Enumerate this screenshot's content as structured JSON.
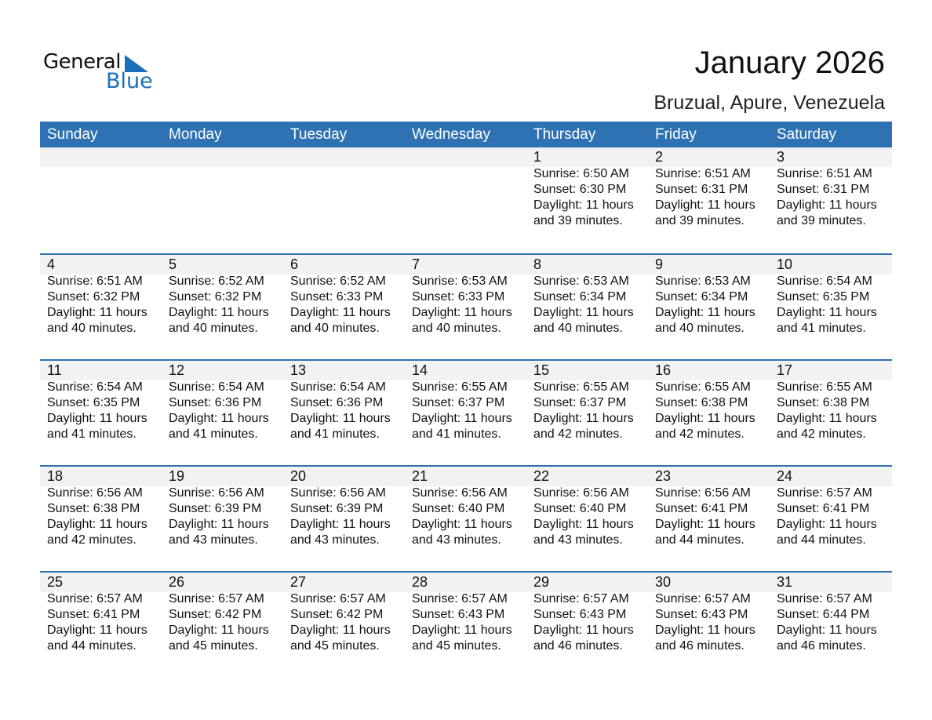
{
  "logo": {
    "text_general": "General",
    "text_blue": "Blue"
  },
  "title": "January 2026",
  "subtitle": "Bruzual, Apure, Venezuela",
  "colors": {
    "header_bg": "#2e72b4",
    "band_bg": "#f2f2f2",
    "brand": "#1a70b8"
  },
  "weekdays": [
    "Sunday",
    "Monday",
    "Tuesday",
    "Wednesday",
    "Thursday",
    "Friday",
    "Saturday"
  ],
  "weeks": [
    [
      null,
      null,
      null,
      null,
      {
        "date": "1",
        "sunrise": "Sunrise: 6:50 AM",
        "sunset": "Sunset: 6:30 PM",
        "daylight": "Daylight: 11 hours",
        "minutes": "and 39 minutes."
      },
      {
        "date": "2",
        "sunrise": "Sunrise: 6:51 AM",
        "sunset": "Sunset: 6:31 PM",
        "daylight": "Daylight: 11 hours",
        "minutes": "and 39 minutes."
      },
      {
        "date": "3",
        "sunrise": "Sunrise: 6:51 AM",
        "sunset": "Sunset: 6:31 PM",
        "daylight": "Daylight: 11 hours",
        "minutes": "and 39 minutes."
      }
    ],
    [
      {
        "date": "4",
        "sunrise": "Sunrise: 6:51 AM",
        "sunset": "Sunset: 6:32 PM",
        "daylight": "Daylight: 11 hours",
        "minutes": "and 40 minutes."
      },
      {
        "date": "5",
        "sunrise": "Sunrise: 6:52 AM",
        "sunset": "Sunset: 6:32 PM",
        "daylight": "Daylight: 11 hours",
        "minutes": "and 40 minutes."
      },
      {
        "date": "6",
        "sunrise": "Sunrise: 6:52 AM",
        "sunset": "Sunset: 6:33 PM",
        "daylight": "Daylight: 11 hours",
        "minutes": "and 40 minutes."
      },
      {
        "date": "7",
        "sunrise": "Sunrise: 6:53 AM",
        "sunset": "Sunset: 6:33 PM",
        "daylight": "Daylight: 11 hours",
        "minutes": "and 40 minutes."
      },
      {
        "date": "8",
        "sunrise": "Sunrise: 6:53 AM",
        "sunset": "Sunset: 6:34 PM",
        "daylight": "Daylight: 11 hours",
        "minutes": "and 40 minutes."
      },
      {
        "date": "9",
        "sunrise": "Sunrise: 6:53 AM",
        "sunset": "Sunset: 6:34 PM",
        "daylight": "Daylight: 11 hours",
        "minutes": "and 40 minutes."
      },
      {
        "date": "10",
        "sunrise": "Sunrise: 6:54 AM",
        "sunset": "Sunset: 6:35 PM",
        "daylight": "Daylight: 11 hours",
        "minutes": "and 41 minutes."
      }
    ],
    [
      {
        "date": "11",
        "sunrise": "Sunrise: 6:54 AM",
        "sunset": "Sunset: 6:35 PM",
        "daylight": "Daylight: 11 hours",
        "minutes": "and 41 minutes."
      },
      {
        "date": "12",
        "sunrise": "Sunrise: 6:54 AM",
        "sunset": "Sunset: 6:36 PM",
        "daylight": "Daylight: 11 hours",
        "minutes": "and 41 minutes."
      },
      {
        "date": "13",
        "sunrise": "Sunrise: 6:54 AM",
        "sunset": "Sunset: 6:36 PM",
        "daylight": "Daylight: 11 hours",
        "minutes": "and 41 minutes."
      },
      {
        "date": "14",
        "sunrise": "Sunrise: 6:55 AM",
        "sunset": "Sunset: 6:37 PM",
        "daylight": "Daylight: 11 hours",
        "minutes": "and 41 minutes."
      },
      {
        "date": "15",
        "sunrise": "Sunrise: 6:55 AM",
        "sunset": "Sunset: 6:37 PM",
        "daylight": "Daylight: 11 hours",
        "minutes": "and 42 minutes."
      },
      {
        "date": "16",
        "sunrise": "Sunrise: 6:55 AM",
        "sunset": "Sunset: 6:38 PM",
        "daylight": "Daylight: 11 hours",
        "minutes": "and 42 minutes."
      },
      {
        "date": "17",
        "sunrise": "Sunrise: 6:55 AM",
        "sunset": "Sunset: 6:38 PM",
        "daylight": "Daylight: 11 hours",
        "minutes": "and 42 minutes."
      }
    ],
    [
      {
        "date": "18",
        "sunrise": "Sunrise: 6:56 AM",
        "sunset": "Sunset: 6:38 PM",
        "daylight": "Daylight: 11 hours",
        "minutes": "and 42 minutes."
      },
      {
        "date": "19",
        "sunrise": "Sunrise: 6:56 AM",
        "sunset": "Sunset: 6:39 PM",
        "daylight": "Daylight: 11 hours",
        "minutes": "and 43 minutes."
      },
      {
        "date": "20",
        "sunrise": "Sunrise: 6:56 AM",
        "sunset": "Sunset: 6:39 PM",
        "daylight": "Daylight: 11 hours",
        "minutes": "and 43 minutes."
      },
      {
        "date": "21",
        "sunrise": "Sunrise: 6:56 AM",
        "sunset": "Sunset: 6:40 PM",
        "daylight": "Daylight: 11 hours",
        "minutes": "and 43 minutes."
      },
      {
        "date": "22",
        "sunrise": "Sunrise: 6:56 AM",
        "sunset": "Sunset: 6:40 PM",
        "daylight": "Daylight: 11 hours",
        "minutes": "and 43 minutes."
      },
      {
        "date": "23",
        "sunrise": "Sunrise: 6:56 AM",
        "sunset": "Sunset: 6:41 PM",
        "daylight": "Daylight: 11 hours",
        "minutes": "and 44 minutes."
      },
      {
        "date": "24",
        "sunrise": "Sunrise: 6:57 AM",
        "sunset": "Sunset: 6:41 PM",
        "daylight": "Daylight: 11 hours",
        "minutes": "and 44 minutes."
      }
    ],
    [
      {
        "date": "25",
        "sunrise": "Sunrise: 6:57 AM",
        "sunset": "Sunset: 6:41 PM",
        "daylight": "Daylight: 11 hours",
        "minutes": "and 44 minutes."
      },
      {
        "date": "26",
        "sunrise": "Sunrise: 6:57 AM",
        "sunset": "Sunset: 6:42 PM",
        "daylight": "Daylight: 11 hours",
        "minutes": "and 45 minutes."
      },
      {
        "date": "27",
        "sunrise": "Sunrise: 6:57 AM",
        "sunset": "Sunset: 6:42 PM",
        "daylight": "Daylight: 11 hours",
        "minutes": "and 45 minutes."
      },
      {
        "date": "28",
        "sunrise": "Sunrise: 6:57 AM",
        "sunset": "Sunset: 6:43 PM",
        "daylight": "Daylight: 11 hours",
        "minutes": "and 45 minutes."
      },
      {
        "date": "29",
        "sunrise": "Sunrise: 6:57 AM",
        "sunset": "Sunset: 6:43 PM",
        "daylight": "Daylight: 11 hours",
        "minutes": "and 46 minutes."
      },
      {
        "date": "30",
        "sunrise": "Sunrise: 6:57 AM",
        "sunset": "Sunset: 6:43 PM",
        "daylight": "Daylight: 11 hours",
        "minutes": "and 46 minutes."
      },
      {
        "date": "31",
        "sunrise": "Sunrise: 6:57 AM",
        "sunset": "Sunset: 6:44 PM",
        "daylight": "Daylight: 11 hours",
        "minutes": "and 46 minutes."
      }
    ]
  ]
}
